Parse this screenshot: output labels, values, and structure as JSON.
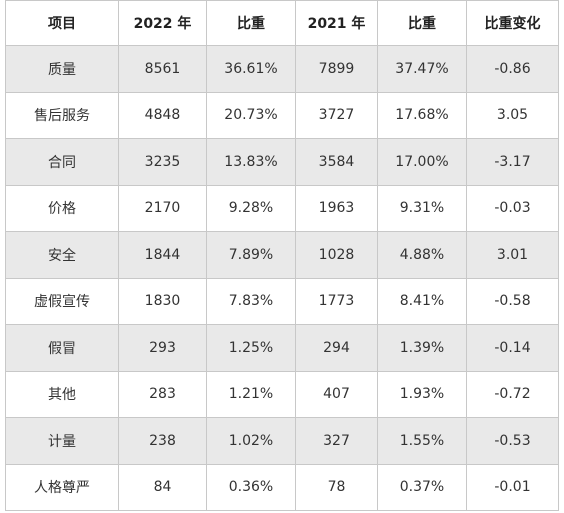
{
  "table": {
    "headers": [
      "项目",
      "2022 年",
      "比重",
      "2021 年",
      "比重",
      "比重变化"
    ],
    "rows": [
      [
        "质量",
        "8561",
        "36.61%",
        "7899",
        "37.47%",
        "-0.86"
      ],
      [
        "售后服务",
        "4848",
        "20.73%",
        "3727",
        "17.68%",
        "3.05"
      ],
      [
        "合同",
        "3235",
        "13.83%",
        "3584",
        "17.00%",
        "-3.17"
      ],
      [
        "价格",
        "2170",
        "9.28%",
        "1963",
        "9.31%",
        "-0.03"
      ],
      [
        "安全",
        "1844",
        "7.89%",
        "1028",
        "4.88%",
        "3.01"
      ],
      [
        "虚假宣传",
        "1830",
        "7.83%",
        "1773",
        "8.41%",
        "-0.58"
      ],
      [
        "假冒",
        "293",
        "1.25%",
        "294",
        "1.39%",
        "-0.14"
      ],
      [
        "其他",
        "283",
        "1.21%",
        "407",
        "1.93%",
        "-0.72"
      ],
      [
        "计量",
        "238",
        "1.02%",
        "327",
        "1.55%",
        "-0.53"
      ],
      [
        "人格尊严",
        "84",
        "0.36%",
        "78",
        "0.37%",
        "-0.01"
      ]
    ]
  }
}
